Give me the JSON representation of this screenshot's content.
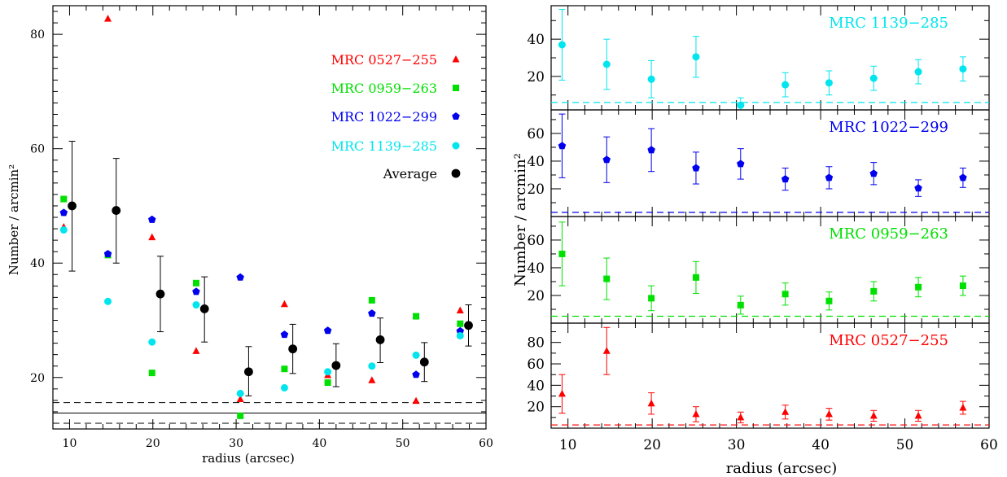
{
  "chart_data": [
    {
      "type": "scatter",
      "panel": "left",
      "xlabel": "radius (arcsec)",
      "ylabel": "Number / arcmin²",
      "xlim": [
        8,
        60
      ],
      "ylim": [
        11,
        85
      ],
      "xticks": [
        10,
        20,
        30,
        40,
        50,
        60
      ],
      "yticks": [
        20,
        40,
        60,
        80
      ],
      "legend_placement": "top-right",
      "reference_lines": [
        {
          "y": 13.8,
          "style": "solid"
        },
        {
          "y": 15.6,
          "style": "dashed"
        },
        {
          "y": 12.0,
          "style": "dashed"
        }
      ],
      "series": [
        {
          "name": "MRC 0527−255",
          "color": "#ff0000",
          "marker": "triangle",
          "x": [
            9.3,
            14.6,
            19.9,
            25.2,
            30.5,
            35.8,
            41.0,
            46.3,
            51.6,
            56.9
          ],
          "y": [
            46.3,
            82.7,
            44.5,
            24.6,
            16.2,
            32.8,
            20.4,
            19.5,
            15.9,
            31.7
          ]
        },
        {
          "name": "MRC 0959−263",
          "color": "#00e000",
          "marker": "square",
          "x": [
            9.3,
            14.6,
            19.9,
            25.2,
            30.5,
            35.8,
            41.0,
            46.3,
            51.6,
            56.9
          ],
          "y": [
            51.2,
            41.4,
            20.8,
            36.5,
            13.3,
            21.5,
            19.1,
            33.5,
            30.7,
            29.4
          ]
        },
        {
          "name": "MRC 1022−299",
          "color": "#0000ee",
          "marker": "pentagon",
          "x": [
            9.3,
            14.6,
            19.9,
            25.2,
            30.5,
            35.8,
            41.0,
            46.3,
            51.6,
            56.9
          ],
          "y": [
            48.8,
            41.6,
            47.6,
            35.0,
            37.5,
            27.5,
            28.2,
            31.2,
            20.5,
            28.1
          ]
        },
        {
          "name": "MRC 1139−285",
          "color": "#00e5ee",
          "marker": "circle",
          "x": [
            9.3,
            14.6,
            19.9,
            25.2,
            30.5,
            35.8,
            41.0,
            46.3,
            51.6,
            56.9
          ],
          "y": [
            45.8,
            33.3,
            26.2,
            32.7,
            17.2,
            18.2,
            21.0,
            22.0,
            23.9,
            27.3
          ]
        },
        {
          "name": "Average",
          "color": "#000000",
          "marker": "circle",
          "x": [
            10.3,
            15.6,
            20.9,
            26.2,
            31.5,
            36.8,
            42.0,
            47.3,
            52.6,
            57.9
          ],
          "y": [
            50.0,
            49.2,
            34.6,
            32.0,
            21.0,
            25.0,
            22.1,
            26.6,
            22.7,
            29.1
          ],
          "err_low": [
            11.4,
            9.2,
            6.6,
            5.8,
            4.2,
            4.3,
            3.7,
            4.0,
            3.4,
            3.6
          ],
          "err_high": [
            11.3,
            9.1,
            6.6,
            5.6,
            4.4,
            4.3,
            3.8,
            3.8,
            3.4,
            3.6
          ]
        }
      ]
    },
    {
      "type": "scatter",
      "panel": "right-1",
      "title": "MRC 1139−285",
      "color": "#00e5ee",
      "marker": "circle",
      "xlim": [
        8,
        60
      ],
      "ylim": [
        2,
        58
      ],
      "yticks": [
        20,
        40
      ],
      "baseline": 6,
      "x": [
        9.3,
        14.6,
        19.9,
        25.2,
        30.5,
        35.8,
        41.0,
        46.3,
        51.6,
        56.9
      ],
      "y": [
        37,
        26.5,
        18.5,
        30.5,
        4.5,
        15.5,
        16.5,
        19,
        22.5,
        24
      ],
      "err": [
        19,
        13.5,
        10,
        11,
        4,
        6.5,
        6.5,
        6.5,
        6.5,
        6.5
      ]
    },
    {
      "type": "scatter",
      "panel": "right-2",
      "title": "MRC 1022−299",
      "color": "#0000ee",
      "marker": "pentagon",
      "xlim": [
        8,
        60
      ],
      "ylim": [
        0,
        77
      ],
      "yticks": [
        20,
        40,
        60
      ],
      "baseline": 3,
      "x": [
        9.3,
        14.6,
        19.9,
        25.2,
        30.5,
        35.8,
        41.0,
        46.3,
        51.6,
        56.9
      ],
      "y": [
        51,
        41,
        48,
        35,
        38,
        27,
        28,
        31,
        20.5,
        28
      ],
      "err": [
        23,
        16.5,
        15.5,
        11.5,
        11,
        8,
        8,
        8,
        6,
        7
      ]
    },
    {
      "type": "scatter",
      "panel": "right-3",
      "title": "MRC 0959−263",
      "color": "#00e000",
      "marker": "square",
      "xlim": [
        8,
        60
      ],
      "ylim": [
        0,
        77
      ],
      "yticks": [
        20,
        40,
        60
      ],
      "baseline": 5,
      "x": [
        9.3,
        14.6,
        19.9,
        25.2,
        30.5,
        35.8,
        41.0,
        46.3,
        51.6,
        56.9
      ],
      "y": [
        50,
        32,
        18,
        33,
        13,
        21,
        16,
        23,
        26,
        27
      ],
      "err": [
        23,
        15,
        9,
        11.5,
        6.5,
        8,
        6.5,
        7,
        7,
        7
      ]
    },
    {
      "type": "scatter",
      "panel": "right-4",
      "title": "MRC 0527−255",
      "color": "#ff0000",
      "marker": "triangle",
      "xlabel": "radius (arcsec)",
      "xlim": [
        8,
        60
      ],
      "xticks": [
        10,
        20,
        30,
        40,
        50,
        60
      ],
      "ylim": [
        0,
        98
      ],
      "yticks": [
        20,
        40,
        60,
        80
      ],
      "baseline": 3,
      "x": [
        9.3,
        14.6,
        19.9,
        25.2,
        30.5,
        35.8,
        41.0,
        46.3,
        51.6,
        56.9
      ],
      "y": [
        32,
        72,
        23,
        13,
        10,
        15,
        13,
        11.5,
        11.5,
        19
      ],
      "err": [
        18,
        22,
        10,
        7,
        5,
        6.5,
        5.5,
        5,
        5,
        6
      ]
    }
  ],
  "right_panels_ylabel": "Number / arcmin²"
}
